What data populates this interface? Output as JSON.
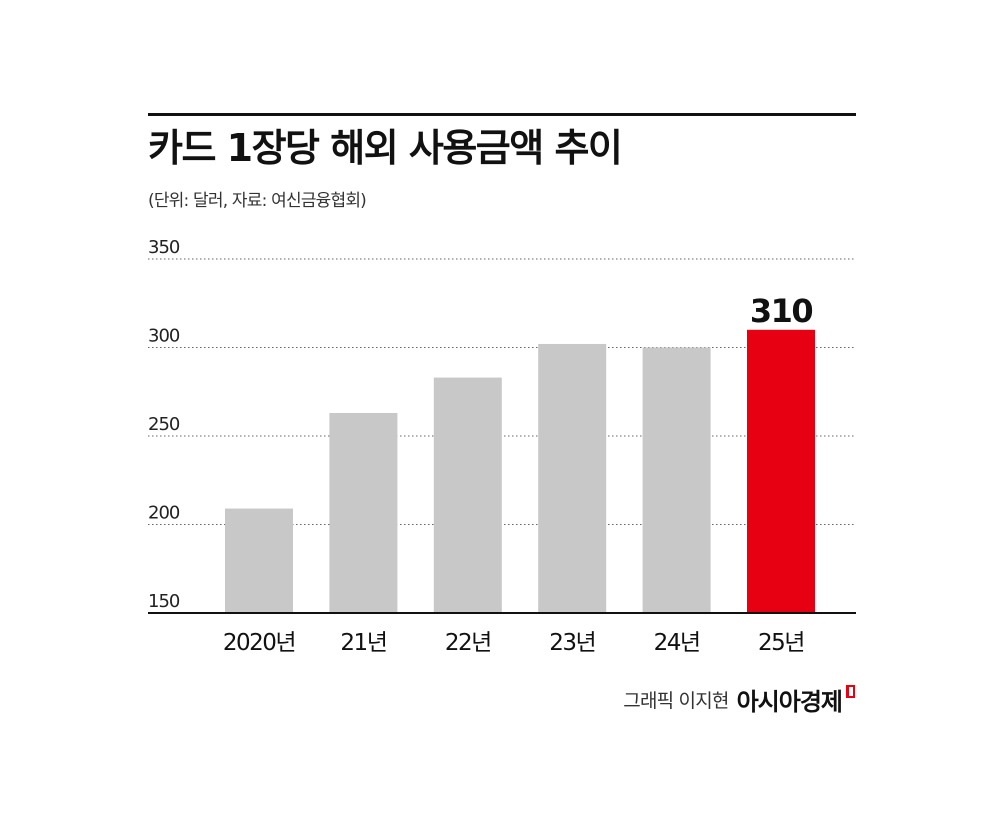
{
  "title": "카드 1장당 해외 사용금액 추이",
  "subtitle": "(단위: 달러, 자료: 여신금융협회)",
  "credit": {
    "graphic": "그래픽 이지현",
    "brand": "아시아경제"
  },
  "colors": {
    "bar": "#c8c8c8",
    "highlight": "#e60012",
    "text": "#111111"
  },
  "chart_data": {
    "type": "bar",
    "categories": [
      "2020년",
      "21년",
      "22년",
      "23년",
      "24년",
      "25년"
    ],
    "values": [
      209,
      263,
      283,
      302,
      300,
      310
    ],
    "highlight_index": 5,
    "highlight_label": "310",
    "yticks": [
      150,
      200,
      250,
      300,
      350
    ],
    "ylim": [
      150,
      350
    ],
    "grid": true
  }
}
